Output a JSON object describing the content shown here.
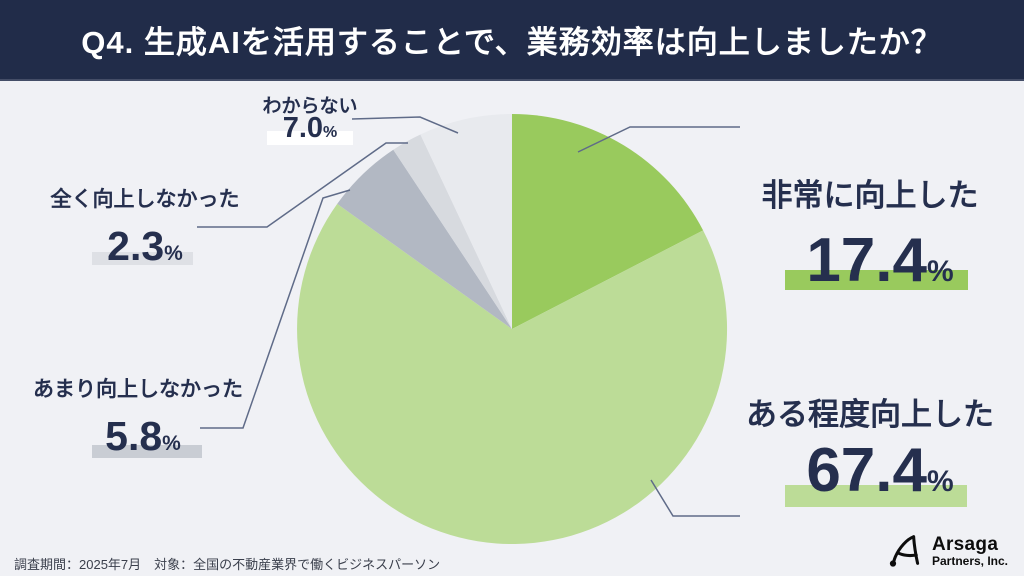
{
  "header": {
    "title": "Q4. 生成AIを活用することで、業務効率は向上しましたか？"
  },
  "chart_data": {
    "type": "pie",
    "title": "Q4. 生成AIを活用することで、業務効率は向上しましたか？",
    "unit": "%",
    "start_angle": "12-oclock",
    "direction": "clockwise",
    "legend_position": "external-callouts",
    "segments": [
      {
        "label": "非常に向上した",
        "value": 17.4,
        "color": "#99CA5D"
      },
      {
        "label": "ある程度向上した",
        "value": 67.4,
        "color": "#BCDC97"
      },
      {
        "label": "あまり向上しなかった",
        "value": 5.8,
        "color": "#B2B8C3"
      },
      {
        "label": "全く向上しなかった",
        "value": 2.3,
        "color": "#D7DADF"
      },
      {
        "label": "わからない",
        "value": 7.0,
        "color": "#E8EAEE"
      }
    ]
  },
  "callouts": {
    "very": {
      "label": "非常に向上した",
      "value": "17.4",
      "unit": "%",
      "bar_color": "#99CA5D"
    },
    "some": {
      "label": "ある程度向上した",
      "value": "67.4",
      "unit": "%",
      "bar_color": "#BCDC97"
    },
    "notmuch": {
      "label": "あまり向上しなかった",
      "value": "5.8",
      "unit": "%",
      "bar_color": "#C9CDD4"
    },
    "notatall": {
      "label": "全く向上しなかった",
      "value": "2.3",
      "unit": "%",
      "bar_color": "#DEE0E5"
    },
    "unknown": {
      "label": "わからない",
      "value": "7.0",
      "unit": "%",
      "bar_color": "#FFFFFF"
    }
  },
  "footer": {
    "note": "調査期間：2025年7月　対象：全国の不動産業界で働くビジネスパーソン"
  },
  "logo": {
    "brand": "Arsaga",
    "suffix": "Partners, Inc."
  },
  "colors": {
    "header_bg": "#212C49",
    "page_bg": "#F0F1F5",
    "text": "#252F4E",
    "leader_line": "#5F6B88"
  }
}
